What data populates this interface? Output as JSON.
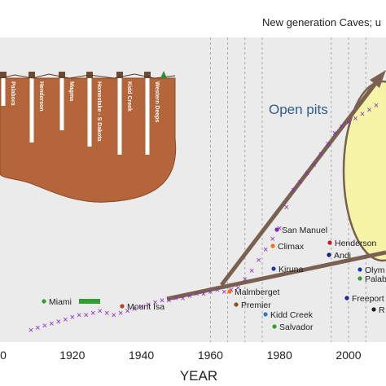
{
  "chart_data": {
    "type": "scatter",
    "subtitle": "New generation Caves; u",
    "xlabel": "YEAR",
    "x_ticks": [
      "0",
      "1920",
      "1940",
      "1960",
      "1980",
      "2000"
    ],
    "xlim": [
      1900,
      2010
    ],
    "grid": "dashed vertical lines",
    "colors": {
      "panel": "#ebebeb",
      "ground": "#b5653a",
      "arrow": "#7a6050",
      "ellipse_fill": "#f6f4a6",
      "ellipse_stroke": "#7a6050",
      "shafts": "#ffffff",
      "series_main": "#8a2bbf",
      "pits_text": "#2f5d8a"
    },
    "annotations": {
      "open_pits": "Open pits",
      "mines": [
        {
          "label": "Miami",
          "x": 1921
        },
        {
          "label": "Mount Isa",
          "x": 1939
        },
        {
          "label": "Malmberget",
          "x": 1971
        },
        {
          "label": "Premier",
          "x": 1971
        },
        {
          "label": "San Manuel",
          "x": 1984
        },
        {
          "label": "Climax",
          "x": 1980
        },
        {
          "label": "Kiruna",
          "x": 1981
        },
        {
          "label": "Kidd Creek",
          "x": 1980
        },
        {
          "label": "Salvador",
          "x": 1981
        },
        {
          "label": "Henderson",
          "x": 1999
        },
        {
          "label": "Andi",
          "x": 2000
        },
        {
          "label": "Olym",
          "x": 2005
        },
        {
          "label": "Palab",
          "x": 2004
        },
        {
          "label": "Freeport",
          "x": 2002
        },
        {
          "label": "R",
          "x": 2006
        }
      ],
      "inset_shafts": [
        "Palabora",
        "Henderson",
        "Magma",
        "Homestake - S Dakota",
        "Kidd Creek",
        "Western Deeps"
      ]
    },
    "series": [
      {
        "marker": "x",
        "x": [
          1908,
          1910,
          1912,
          1914,
          1916,
          1918,
          1920,
          1922,
          1924,
          1926,
          1928,
          1930,
          1932,
          1934,
          1936,
          1938,
          1940,
          1942,
          1944,
          1946,
          1948,
          1950,
          1952,
          1954,
          1956,
          1958,
          1960,
          1962,
          1964,
          1966,
          1968,
          1970,
          1972,
          1974,
          1976,
          1978,
          1980,
          1982,
          1984,
          1986,
          1988,
          1990,
          1992,
          1994,
          1996,
          1998,
          2000,
          2002,
          2004,
          2006,
          2008
        ],
        "y": [
          2,
          3,
          4,
          5,
          6,
          7,
          8,
          9,
          9,
          10,
          11,
          10,
          9,
          10,
          11,
          12,
          13,
          14,
          15,
          16,
          16,
          17,
          17,
          18,
          19,
          19,
          20,
          21,
          20,
          21,
          22,
          26,
          30,
          35,
          40,
          45,
          50,
          60,
          68,
          72,
          76,
          80,
          85,
          90,
          95,
          98,
          100,
          102,
          104,
          106,
          108
        ]
      }
    ]
  }
}
